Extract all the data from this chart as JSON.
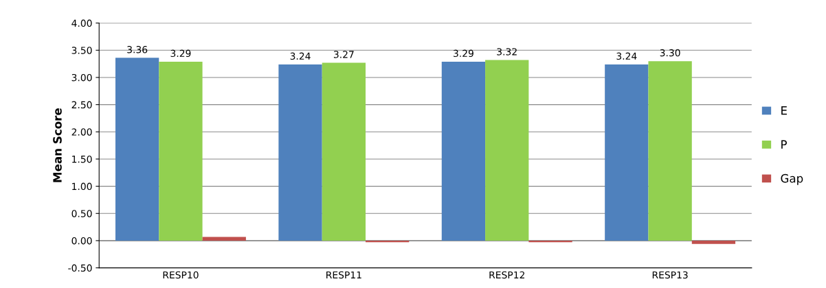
{
  "chart_data": {
    "type": "bar",
    "ylabel": "Mean Score",
    "categories": [
      "RESP10",
      "RESP11",
      "RESP12",
      "RESP13"
    ],
    "series": [
      {
        "name": "E",
        "color": "#4f81bd",
        "values": [
          3.36,
          3.24,
          3.29,
          3.24
        ],
        "value_labels": [
          "3.36",
          "3.24",
          "3.29",
          "3.24"
        ]
      },
      {
        "name": "P",
        "color": "#92d050",
        "values": [
          3.29,
          3.27,
          3.32,
          3.3
        ],
        "value_labels": [
          "3.29",
          "3.27",
          "3.32",
          "3.30"
        ]
      },
      {
        "name": "Gap",
        "color": "#c0504d",
        "values": [
          0.07,
          -0.03,
          -0.03,
          -0.06
        ]
      }
    ],
    "ylim": [
      -0.5,
      4.0
    ],
    "yticks": [
      "-0.50",
      "0.00",
      "0.50",
      "1.00",
      "1.50",
      "2.00",
      "2.50",
      "3.00",
      "3.50",
      "4.00"
    ],
    "grid": "y",
    "legend": "right"
  }
}
